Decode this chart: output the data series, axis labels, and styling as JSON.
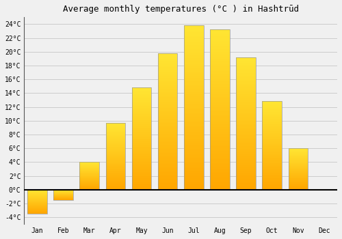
{
  "title": "Average monthly temperatures (°C ) in Hashtrūd",
  "months": [
    "Jan",
    "Feb",
    "Mar",
    "Apr",
    "May",
    "Jun",
    "Jul",
    "Aug",
    "Sep",
    "Oct",
    "Nov",
    "Dec"
  ],
  "values": [
    -3.5,
    -1.5,
    4.0,
    9.7,
    14.8,
    19.8,
    23.8,
    23.2,
    19.2,
    12.8,
    6.0,
    0.0
  ],
  "bar_color_top": "#FFD700",
  "bar_color_bottom": "#FFA500",
  "bar_edge_color": "#999999",
  "background_color": "#f0f0f0",
  "ylim": [
    -5,
    25
  ],
  "yticks": [
    -4,
    -2,
    0,
    2,
    4,
    6,
    8,
    10,
    12,
    14,
    16,
    18,
    20,
    22,
    24
  ],
  "title_fontsize": 9,
  "tick_fontsize": 7,
  "grid_color": "#cccccc",
  "zero_line_color": "#000000",
  "figsize": [
    5.0,
    3.5
  ],
  "dpi": 100
}
